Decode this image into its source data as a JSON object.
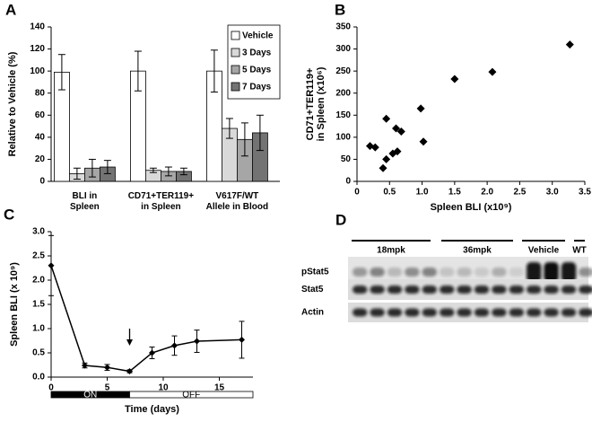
{
  "chart_data": [
    {
      "type": "bar",
      "panel": "A",
      "ylabel": "Relative to Vehicle (%)",
      "categories": [
        "BLI in\nSpleen",
        "CD71+TER119+\nin Spleen",
        "V617F/WT\nAllele in Blood"
      ],
      "series": [
        {
          "name": "Vehicle",
          "color": "#ffffff",
          "values": [
            99,
            100,
            100
          ],
          "errors": [
            16,
            18,
            19
          ]
        },
        {
          "name": "3 Days",
          "color": "#d9d9d9",
          "values": [
            7,
            10,
            48
          ],
          "errors": [
            5,
            2,
            9
          ]
        },
        {
          "name": "5 Days",
          "color": "#a6a6a6",
          "values": [
            12,
            9,
            38
          ],
          "errors": [
            8,
            4,
            15
          ]
        },
        {
          "name": "7 Days",
          "color": "#737373",
          "values": [
            13,
            9,
            44
          ],
          "errors": [
            6,
            3,
            16
          ]
        }
      ],
      "ylim": [
        0,
        140
      ],
      "yticks": [
        0,
        20,
        40,
        60,
        80,
        100,
        120,
        140
      ],
      "legend": "top-right"
    },
    {
      "type": "scatter",
      "panel": "B",
      "xlabel": "Spleen BLI (x10⁹)",
      "ylabel": "CD71+TER119+\nin Spleen (x10⁶)",
      "color": "#000000",
      "x": [
        0.2,
        0.28,
        0.4,
        0.45,
        0.45,
        0.55,
        0.6,
        0.62,
        0.68,
        0.98,
        1.02,
        1.5,
        2.08,
        3.27
      ],
      "values": [
        80,
        77,
        30,
        50,
        142,
        63,
        120,
        68,
        113,
        165,
        90,
        232,
        248,
        310
      ],
      "xlim": [
        0,
        3.5
      ],
      "xticks": [
        0,
        0.5,
        {
          "value": 1,
          "label": "1.0"
        },
        1.5,
        {
          "value": 2,
          "label": "2.0"
        },
        2.5,
        {
          "value": 3,
          "label": "3.0"
        },
        3.5
      ],
      "ylim": [
        0,
        350
      ],
      "yticks": [
        0,
        50,
        100,
        150,
        200,
        250,
        300,
        350
      ]
    },
    {
      "type": "line",
      "panel": "C",
      "xlabel": "Time (days)",
      "ylabel": "Spleen BLI (x 10⁹)",
      "color": "#000000",
      "x": [
        0,
        3,
        5,
        7,
        9,
        11,
        13,
        17
      ],
      "values": [
        2.3,
        0.24,
        0.2,
        0.12,
        0.5,
        0.65,
        0.74,
        0.77
      ],
      "errors": [
        0.62,
        0.05,
        0.06,
        0.03,
        0.12,
        0.2,
        0.23,
        0.38
      ],
      "xlim": [
        0,
        18
      ],
      "xticks": [
        0,
        5,
        10,
        15
      ],
      "ylim": [
        0,
        3
      ],
      "yticks": [
        {
          "value": 0,
          "label": "0.0"
        },
        0.5,
        {
          "value": 1,
          "label": "1.0"
        },
        1.5,
        {
          "value": 2,
          "label": "2.0"
        },
        2.5,
        {
          "value": 3,
          "label": "3.0"
        }
      ],
      "arrow_x": 7,
      "phases": [
        {
          "label": "ON",
          "start": 0,
          "end": 7
        },
        {
          "label": "OFF",
          "start": 7,
          "end": 18
        }
      ]
    },
    {
      "type": "blot",
      "panel": "D",
      "groups": [
        "18mpk",
        "36mpk",
        "Vehicle",
        "WT"
      ],
      "rows": [
        "pStat5",
        "Stat5",
        "Actin"
      ]
    }
  ]
}
